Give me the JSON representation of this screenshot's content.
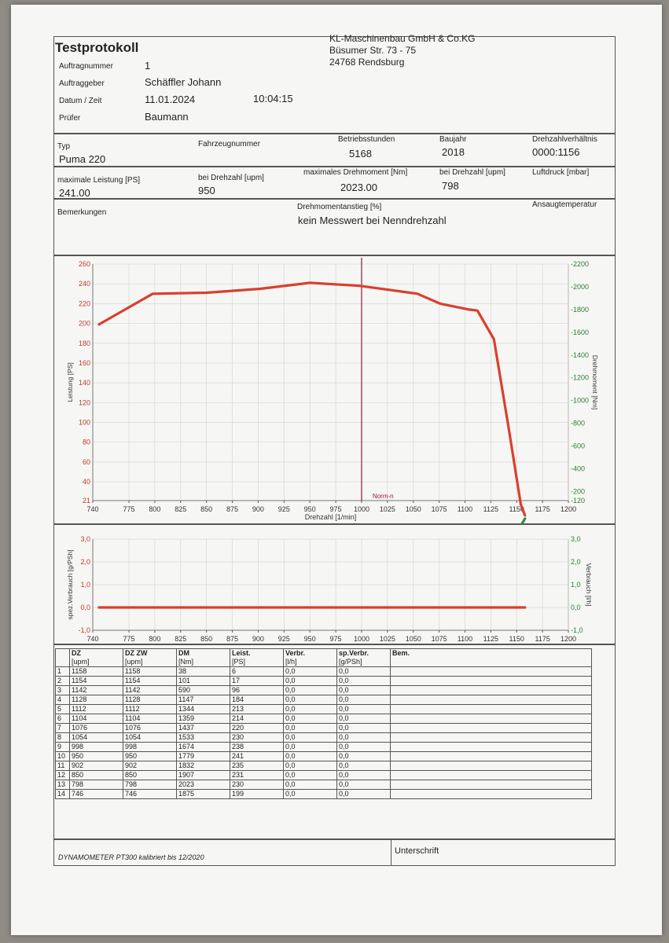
{
  "header": {
    "title": "Testprotokoll",
    "company": [
      "KL-Maschinenbau GmbH & Co.KG",
      "Büsumer Str. 73 - 75",
      "24768 Rendsburg"
    ],
    "fields": [
      {
        "label": "Auftragnummer",
        "value": "1"
      },
      {
        "label": "Auftraggeber",
        "value": "Schäffler Johann"
      },
      {
        "label": "Datum / Zeit",
        "value": "11.01.2024",
        "extra": "10:04:15"
      },
      {
        "label": "Prüfer",
        "value": "Baumann"
      }
    ]
  },
  "vehicle": {
    "typ_label": "Typ",
    "typ_value": "Puma 220",
    "fzg_label": "Fahrzeugnummer",
    "bst_label": "Betriebsstunden",
    "bst_value": "5168",
    "bj_label": "Baujahr",
    "bj_value": "2018",
    "dzv_label": "Drehzahlverhältnis",
    "dzv_value": "0000:1156"
  },
  "perf": {
    "ml_label": "maximale Leistung [PS]",
    "ml_value": "241.00",
    "bd1_label": "bei Drehzahl [upm]",
    "bd1_value": "950",
    "md_label": "maximales Drehmoment [Nm]",
    "md_value": "2023.00",
    "bd2_label": "bei Drehzahl [upm]",
    "bd2_value": "798",
    "ld_label": "Luftdruck [mbar]"
  },
  "remarks": {
    "bem_label": "Bemerkungen",
    "da_label": "Drehmomentanstieg [%]",
    "da_value": "kein Messwert bei Nenndrehzahl",
    "at_label": "Ansaugtemperatur"
  },
  "chart_data": [
    {
      "type": "line",
      "xlabel": "Drehzahl [1/min]",
      "ylabel": "Leistung [PS]",
      "y2label": "Drehmoment [Nm]",
      "xlim": [
        740,
        1200
      ],
      "x_ticks": [
        740,
        775,
        800,
        825,
        850,
        875,
        900,
        925,
        950,
        975,
        1000,
        1025,
        1050,
        1075,
        1100,
        1125,
        1150,
        1175,
        1200
      ],
      "ylim": [
        21,
        260
      ],
      "y_ticks": [
        21,
        40,
        60,
        80,
        100,
        120,
        140,
        160,
        180,
        200,
        220,
        240,
        260
      ],
      "y2lim": [
        -120,
        -2200
      ],
      "y2_ticks": [
        -120,
        -200,
        -400,
        -600,
        -800,
        -1000,
        -1200,
        -1400,
        -1600,
        -1800,
        -2000,
        -2200
      ],
      "marker": {
        "x": 1000,
        "label": "Norm-n"
      },
      "series": [
        {
          "axis": "left",
          "color": "#d8402f",
          "x": [
            746,
            798,
            850,
            902,
            950,
            998,
            1054,
            1076,
            1104,
            1112,
            1128,
            1142,
            1154,
            1158
          ],
          "y": [
            199,
            230,
            231,
            235,
            241,
            238,
            230,
            220,
            214,
            213,
            184,
            96,
            17,
            6
          ]
        },
        {
          "axis": "right",
          "color": "#2e8b3a",
          "x": [
            746,
            798,
            850,
            902,
            950,
            998,
            1054,
            1076,
            1104,
            1112,
            1128,
            1142,
            1154,
            1158
          ],
          "y": [
            1875,
            2023,
            1907,
            1832,
            1779,
            1674,
            1533,
            1437,
            1359,
            1344,
            1147,
            590,
            101,
            38
          ]
        }
      ]
    },
    {
      "type": "line",
      "xlabel": "",
      "ylabel": "spez.Verbrauch [g/PSh]",
      "y2label": "Verbrauch [l/h]",
      "xlim": [
        740,
        1200
      ],
      "x_ticks": [
        740,
        775,
        800,
        825,
        850,
        875,
        900,
        925,
        950,
        975,
        1000,
        1025,
        1050,
        1075,
        1100,
        1125,
        1150,
        1175,
        1200
      ],
      "ylim": [
        -1.0,
        3.0
      ],
      "y_ticks": [
        "-1,0",
        "0,0",
        "1,0",
        "2,0",
        "3,0"
      ],
      "y2lim": [
        -1.0,
        3.0
      ],
      "y2_ticks": [
        "-1,0",
        "0,0",
        "1,0",
        "2,0",
        "3,0"
      ],
      "series": [
        {
          "axis": "left",
          "color": "#d8402f",
          "x": [
            746,
            1158
          ],
          "y": [
            0.0,
            0.0
          ]
        }
      ]
    }
  ],
  "table": {
    "headers": [
      "DZ",
      "DZ ZW",
      "DM",
      "Leist.",
      "Verbr.",
      "sp.Verbr.",
      "Bem."
    ],
    "units": [
      "[upm]",
      "[upm]",
      "[Nm]",
      "[PS]",
      "[l/h]",
      "[g/PSh]",
      ""
    ],
    "rows": [
      [
        "1",
        "1158",
        "1158",
        "38",
        "6",
        "0,0",
        "0,0"
      ],
      [
        "2",
        "1154",
        "1154",
        "101",
        "17",
        "0,0",
        "0,0"
      ],
      [
        "3",
        "1142",
        "1142",
        "590",
        "96",
        "0,0",
        "0,0"
      ],
      [
        "4",
        "1128",
        "1128",
        "1147",
        "184",
        "0,0",
        "0,0"
      ],
      [
        "5",
        "1112",
        "1112",
        "1344",
        "213",
        "0,0",
        "0,0"
      ],
      [
        "6",
        "1104",
        "1104",
        "1359",
        "214",
        "0,0",
        "0,0"
      ],
      [
        "7",
        "1076",
        "1076",
        "1437",
        "220",
        "0,0",
        "0,0"
      ],
      [
        "8",
        "1054",
        "1054",
        "1533",
        "230",
        "0,0",
        "0,0"
      ],
      [
        "9",
        "998",
        "998",
        "1674",
        "238",
        "0,0",
        "0,0"
      ],
      [
        "10",
        "950",
        "950",
        "1779",
        "241",
        "0,0",
        "0,0"
      ],
      [
        "11",
        "902",
        "902",
        "1832",
        "235",
        "0,0",
        "0,0"
      ],
      [
        "12",
        "850",
        "850",
        "1907",
        "231",
        "0,0",
        "0,0"
      ],
      [
        "13",
        "798",
        "798",
        "2023",
        "230",
        "0,0",
        "0,0"
      ],
      [
        "14",
        "746",
        "746",
        "1875",
        "199",
        "0,0",
        "0,0"
      ]
    ]
  },
  "footer": {
    "dyno": "DYNAMOMETER PT300 kalibriert bis 12/2020",
    "signature": "Unterschrift"
  }
}
